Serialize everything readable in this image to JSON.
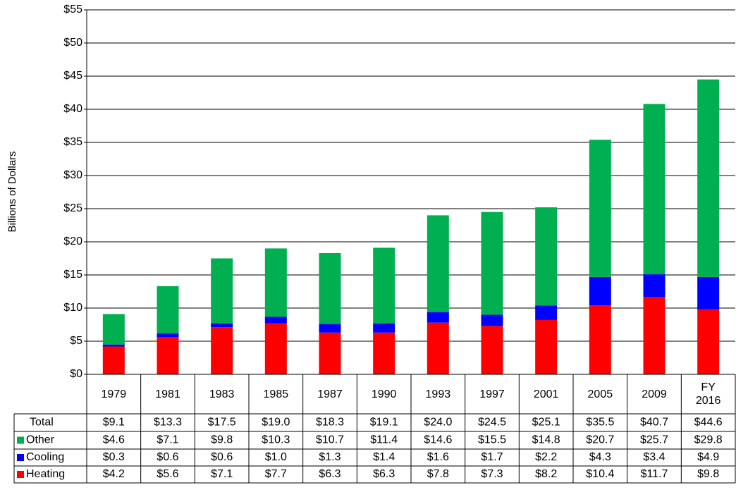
{
  "chart_data": {
    "type": "stacked_bar",
    "y_label": "Billions of Dollars",
    "categories": [
      "1979",
      "1981",
      "1983",
      "1985",
      "1987",
      "1990",
      "1993",
      "1997",
      "2001",
      "2005",
      "2009",
      "FY 2016"
    ],
    "series": [
      {
        "name": "Heating",
        "color": "#ff0000",
        "values": [
          4.2,
          5.6,
          7.1,
          7.7,
          6.3,
          6.3,
          7.8,
          7.3,
          8.2,
          10.4,
          11.7,
          9.8
        ],
        "value_labels": [
          "$4.2",
          "$5.6",
          "$7.1",
          "$7.7",
          "$6.3",
          "$6.3",
          "$7.8",
          "$7.3",
          "$8.2",
          "$10.4",
          "$11.7",
          "$9.8"
        ]
      },
      {
        "name": "Cooling",
        "color": "#0000ff",
        "values": [
          0.3,
          0.6,
          0.6,
          1.0,
          1.3,
          1.4,
          1.6,
          1.7,
          2.2,
          4.3,
          3.4,
          4.9
        ],
        "value_labels": [
          "$0.3",
          "$0.6",
          "$0.6",
          "$1.0",
          "$1.3",
          "$1.4",
          "$1.6",
          "$1.7",
          "$2.2",
          "$4.3",
          "$3.4",
          "$4.9"
        ]
      },
      {
        "name": "Other",
        "color": "#00b050",
        "values": [
          4.6,
          7.1,
          9.8,
          10.3,
          10.7,
          11.4,
          14.6,
          15.5,
          14.8,
          20.7,
          25.7,
          29.8
        ],
        "value_labels": [
          "$4.6",
          "$7.1",
          "$9.8",
          "$10.3",
          "$10.7",
          "$11.4",
          "$14.6",
          "$15.5",
          "$14.8",
          "$20.7",
          "$25.7",
          "$29.8"
        ]
      }
    ],
    "total": {
      "name": "Total",
      "values": [
        9.1,
        13.3,
        17.5,
        19.0,
        18.3,
        19.1,
        24.0,
        24.5,
        25.1,
        35.5,
        40.7,
        44.6
      ],
      "value_labels": [
        "$9.1",
        "$13.3",
        "$17.5",
        "$19.0",
        "$18.3",
        "$19.1",
        "$24.0",
        "$24.5",
        "$25.1",
        "$35.5",
        "$40.7",
        "$44.6"
      ]
    },
    "ylim": [
      0,
      55
    ],
    "yticks": [
      {
        "value": 0,
        "label": "$0"
      },
      {
        "value": 5,
        "label": "$5"
      },
      {
        "value": 10,
        "label": "$10"
      },
      {
        "value": 15,
        "label": "$15"
      },
      {
        "value": 20,
        "label": "$20"
      },
      {
        "value": 25,
        "label": "$25"
      },
      {
        "value": 30,
        "label": "$30"
      },
      {
        "value": 35,
        "label": "$35"
      },
      {
        "value": 40,
        "label": "$40"
      },
      {
        "value": 45,
        "label": "$45"
      },
      {
        "value": 50,
        "label": "$50"
      },
      {
        "value": 55,
        "label": "$55"
      }
    ],
    "grid": true
  }
}
